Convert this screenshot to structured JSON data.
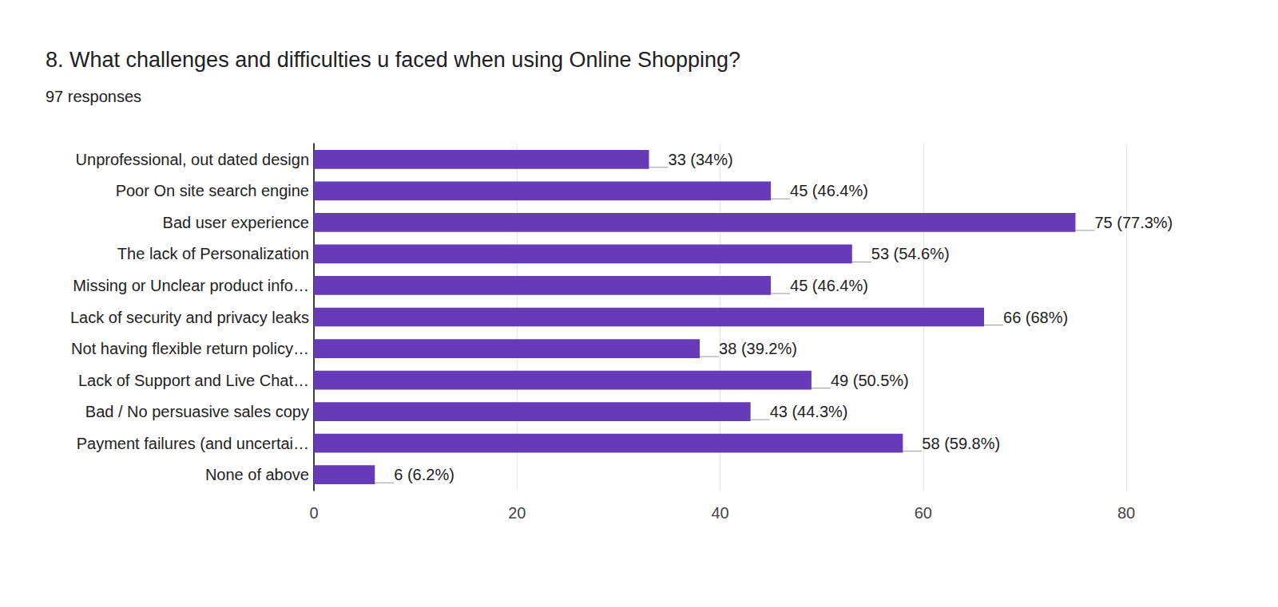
{
  "chart_data": {
    "type": "bar",
    "title": "8. What challenges and difficulties u faced when using Online Shopping?",
    "subtitle": "97 responses",
    "orientation": "horizontal",
    "categories": [
      "Unprofessional, out dated design",
      "Poor On site search engine",
      "Bad user experience",
      "The lack of Personalization",
      "Missing or Unclear product info…",
      "Lack of security and privacy leaks",
      "Not having flexible return policy…",
      "Lack of Support and Live Chat…",
      "Bad / No persuasive sales copy",
      "Payment failures (and uncertai…",
      "None of above"
    ],
    "values": [
      33,
      45,
      75,
      53,
      45,
      66,
      38,
      49,
      43,
      58,
      6
    ],
    "value_labels": [
      "33 (34%)",
      "45 (46.4%)",
      "75 (77.3%)",
      "53 (54.6%)",
      "45 (46.4%)",
      "66 (68%)",
      "38 (39.2%)",
      "49 (50.5%)",
      "43 (44.3%)",
      "58 (59.8%)",
      "6 (6.2%)"
    ],
    "data_labels": true,
    "color": "#673ab7",
    "xlim": [
      0,
      80
    ],
    "xticks": [
      0,
      20,
      40,
      60,
      80
    ],
    "grid": true
  }
}
